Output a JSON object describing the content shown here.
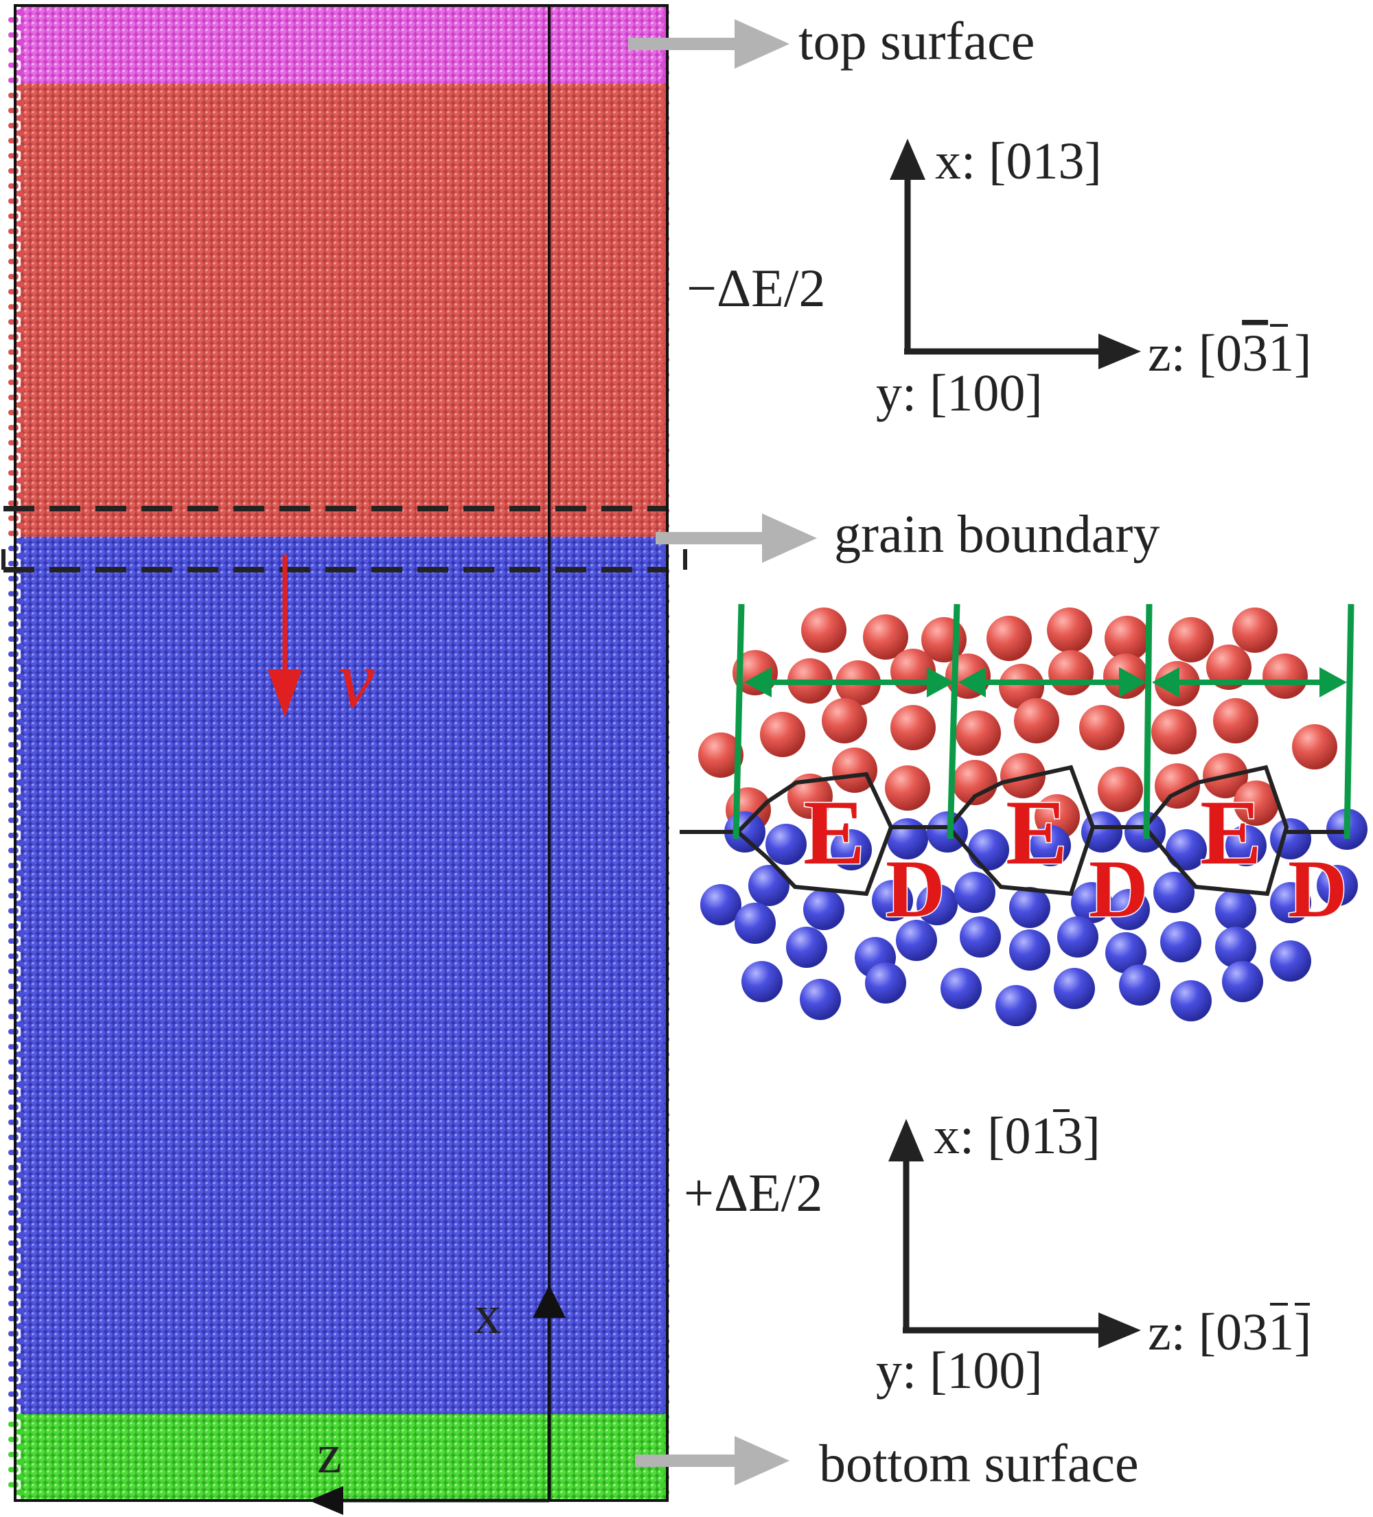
{
  "labels": {
    "top_surface": "top surface",
    "grain_boundary": "grain boundary",
    "bottom_surface": "bottom surface",
    "energy_minus": "−ΔE/2",
    "energy_plus": "+ΔE/2",
    "velocity": "v",
    "axis_x_small": "x",
    "axis_z_small": "z"
  },
  "axes_top": {
    "x_prefix": "x: [",
    "x_digits": "013",
    "x_suffix": "]",
    "z_prefix": "z: [",
    "z_d1": "0",
    "z_d2_bar": "3",
    "z_d3": "1",
    "z_suffix": "]",
    "y_label": "y: [100]"
  },
  "axes_bottom": {
    "x_prefix": "x: [",
    "x_d1": "0",
    "x_d2_bar": "1",
    "x_d3": "3",
    "x_suffix": "]",
    "z_prefix": "z: [",
    "z_d1": "0",
    "z_d2_bar": "3",
    "z_d3_bar": "1",
    "z_suffix": "]",
    "y_label": "y: [100]"
  },
  "inset": {
    "unit_labels": [
      {
        "e": "E",
        "d": "D"
      },
      {
        "e": "E",
        "d": "D"
      },
      {
        "e": "E",
        "d": "D"
      }
    ]
  },
  "colors": {
    "top_surface": "#d94bd6",
    "upper_grain": "#d9504c",
    "lower_grain": "#4a4fd8",
    "bottom_surface": "#3fd42a",
    "velocity": "#e02020",
    "period_markers": "#0b9a47",
    "arrow_gray": "#b3b3b3",
    "ed_label": "#e01818"
  }
}
